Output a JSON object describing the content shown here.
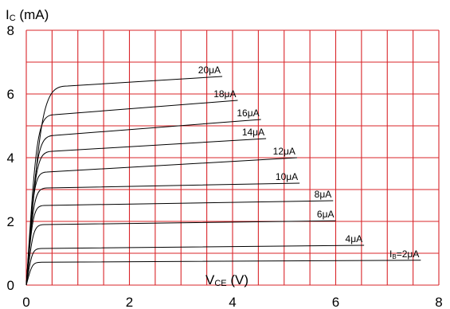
{
  "chart_data": {
    "type": "line",
    "xlabel": {
      "main": "V",
      "sub": "CE",
      "unit": " (V)"
    },
    "ylabel": {
      "main": "I",
      "sub": "C",
      "unit": " (mA)"
    },
    "xlim": [
      0,
      8
    ],
    "ylim": [
      0,
      8
    ],
    "x_ticks": [
      0,
      2,
      4,
      6,
      8
    ],
    "y_ticks": [
      0,
      2,
      4,
      6,
      8
    ],
    "grid": true,
    "series": [
      {
        "name": "2μA",
        "prefix": "I",
        "prefix_sub": "B",
        "eq": "=",
        "knee": [
          0.3,
          0.72
        ],
        "end": [
          7.65,
          0.78
        ]
      },
      {
        "name": "4μA",
        "knee": [
          0.3,
          1.15
        ],
        "end": [
          6.55,
          1.25
        ]
      },
      {
        "name": "6μA",
        "knee": [
          0.35,
          1.9
        ],
        "end": [
          6.0,
          2.02
        ]
      },
      {
        "name": "8μA",
        "knee": [
          0.35,
          2.5
        ],
        "end": [
          5.95,
          2.65
        ]
      },
      {
        "name": "10μA",
        "knee": [
          0.4,
          3.05
        ],
        "end": [
          5.3,
          3.2
        ]
      },
      {
        "name": "12μA",
        "knee": [
          0.4,
          3.55
        ],
        "end": [
          5.25,
          4.0
        ]
      },
      {
        "name": "14μA",
        "knee": [
          0.5,
          4.2
        ],
        "end": [
          4.65,
          4.6
        ]
      },
      {
        "name": "16μA",
        "knee": [
          0.55,
          4.7
        ],
        "end": [
          4.55,
          5.2
        ]
      },
      {
        "name": "18μA",
        "knee": [
          0.55,
          5.35
        ],
        "end": [
          4.1,
          5.8
        ]
      },
      {
        "name": "20μA",
        "knee": [
          0.8,
          6.25
        ],
        "end": [
          3.8,
          6.55
        ]
      }
    ],
    "colors": {
      "grid": "#d9252a",
      "curve": "#000000"
    }
  }
}
